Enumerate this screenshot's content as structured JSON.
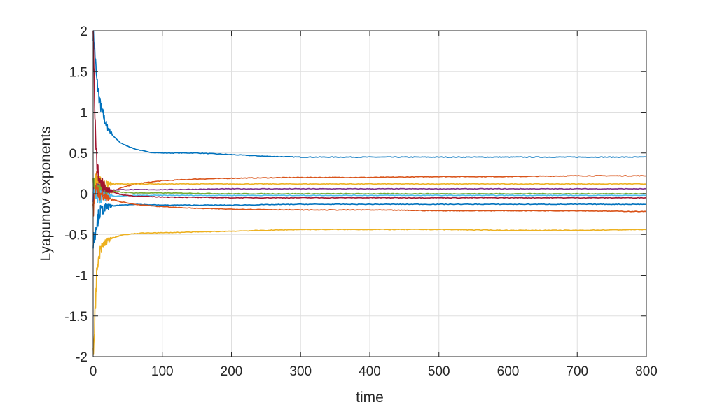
{
  "chart_data": {
    "type": "line",
    "title": "",
    "xlabel": "time",
    "ylabel": "Lyapunov exponents",
    "xlim": [
      0,
      800
    ],
    "ylim": [
      -2,
      2
    ],
    "xticks": [
      0,
      100,
      200,
      300,
      400,
      500,
      600,
      700,
      800
    ],
    "xtick_labels": [
      "0",
      "100",
      "200",
      "300",
      "400",
      "500",
      "600",
      "700",
      "800"
    ],
    "yticks": [
      -2,
      -1.5,
      -1,
      -0.5,
      0,
      0.5,
      1,
      1.5,
      2
    ],
    "ytick_labels": [
      "-2",
      "-1.5",
      "-1",
      "-0.5",
      "0",
      "0.5",
      "1",
      "1.5",
      "2"
    ],
    "grid": true,
    "legend": "none",
    "series": [
      {
        "color": "#0072BD",
        "x": [
          0,
          2,
          5,
          10,
          15,
          20,
          30,
          40,
          60,
          80,
          100,
          150,
          200,
          250,
          300,
          350,
          400,
          500,
          600,
          700,
          800
        ],
        "y": [
          2.0,
          1.8,
          1.4,
          1.1,
          0.95,
          0.82,
          0.7,
          0.62,
          0.55,
          0.51,
          0.5,
          0.5,
          0.48,
          0.46,
          0.45,
          0.45,
          0.45,
          0.45,
          0.45,
          0.45,
          0.45
        ]
      },
      {
        "color": "#D95319",
        "x": [
          0,
          5,
          10,
          20,
          40,
          60,
          100,
          150,
          200,
          300,
          400,
          500,
          600,
          700,
          800
        ],
        "y": [
          -0.1,
          0.2,
          0.05,
          0.0,
          0.07,
          0.12,
          0.16,
          0.18,
          0.19,
          0.2,
          0.2,
          0.21,
          0.21,
          0.22,
          0.22
        ]
      },
      {
        "color": "#EDB120",
        "x": [
          0,
          10,
          20,
          40,
          60,
          100,
          200,
          300,
          400,
          500,
          600,
          700,
          800
        ],
        "y": [
          0.15,
          0.13,
          0.12,
          0.12,
          0.12,
          0.12,
          0.12,
          0.12,
          0.12,
          0.12,
          0.12,
          0.12,
          0.12
        ]
      },
      {
        "color": "#7E2F8E",
        "x": [
          0,
          10,
          20,
          40,
          60,
          100,
          200,
          300,
          400,
          500,
          600,
          700,
          800
        ],
        "y": [
          0.02,
          0.03,
          0.04,
          0.05,
          0.05,
          0.05,
          0.06,
          0.06,
          0.06,
          0.06,
          0.06,
          0.06,
          0.06
        ]
      },
      {
        "color": "#77AC30",
        "x": [
          0,
          10,
          20,
          40,
          60,
          100,
          200,
          300,
          400,
          500,
          600,
          700,
          800
        ],
        "y": [
          0.08,
          0.06,
          0.04,
          0.02,
          0.01,
          0.01,
          0.0,
          0.0,
          0.0,
          0.0,
          0.0,
          0.0,
          0.0
        ]
      },
      {
        "color": "#4DBEEE",
        "x": [
          0,
          10,
          20,
          40,
          60,
          100,
          200,
          300,
          400,
          500,
          600,
          700,
          800
        ],
        "y": [
          -0.05,
          -0.04,
          -0.03,
          -0.03,
          -0.02,
          -0.02,
          -0.02,
          -0.02,
          -0.02,
          -0.02,
          -0.02,
          -0.02,
          -0.02
        ]
      },
      {
        "color": "#A2142F",
        "x": [
          0,
          3,
          6,
          10,
          20,
          40,
          60,
          100,
          200,
          300,
          400,
          500,
          600,
          700,
          800
        ],
        "y": [
          2.0,
          0.8,
          0.3,
          0.15,
          0.05,
          -0.01,
          -0.03,
          -0.04,
          -0.05,
          -0.05,
          -0.05,
          -0.05,
          -0.05,
          -0.05,
          -0.05
        ]
      },
      {
        "color": "#0072BD",
        "x": [
          0,
          5,
          10,
          20,
          40,
          60,
          100,
          200,
          300,
          400,
          500,
          600,
          700,
          800
        ],
        "y": [
          -0.6,
          -0.35,
          -0.22,
          -0.16,
          -0.14,
          -0.13,
          -0.14,
          -0.14,
          -0.13,
          -0.13,
          -0.13,
          -0.13,
          -0.13,
          -0.13
        ]
      },
      {
        "color": "#D95319",
        "x": [
          0,
          5,
          10,
          20,
          40,
          60,
          100,
          150,
          200,
          300,
          400,
          500,
          600,
          700,
          800
        ],
        "y": [
          -0.2,
          0.1,
          -0.02,
          -0.05,
          -0.1,
          -0.13,
          -0.16,
          -0.18,
          -0.19,
          -0.2,
          -0.2,
          -0.21,
          -0.21,
          -0.21,
          -0.22
        ]
      },
      {
        "color": "#EDB120",
        "x": [
          0,
          2,
          5,
          10,
          15,
          20,
          30,
          40,
          60,
          80,
          100,
          150,
          200,
          300,
          350,
          400,
          500,
          600,
          700,
          800
        ],
        "y": [
          -2.0,
          -1.6,
          -1.0,
          -0.72,
          -0.62,
          -0.58,
          -0.54,
          -0.51,
          -0.49,
          -0.48,
          -0.48,
          -0.47,
          -0.46,
          -0.44,
          -0.44,
          -0.44,
          -0.44,
          -0.45,
          -0.45,
          -0.44
        ]
      }
    ]
  }
}
